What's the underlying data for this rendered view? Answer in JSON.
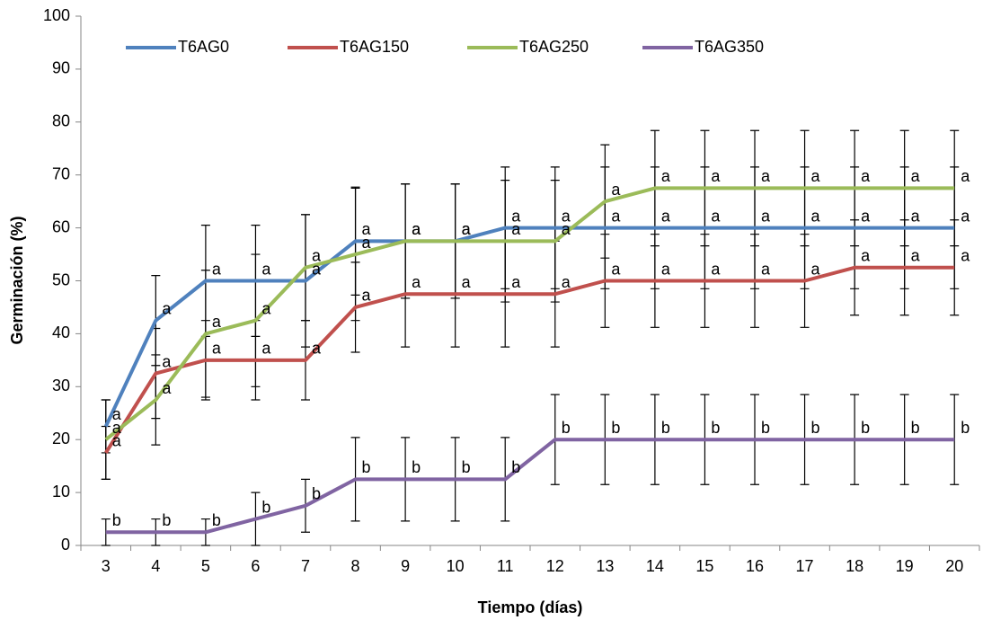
{
  "chart_data": {
    "type": "line",
    "xlabel": "Tiempo (días)",
    "ylabel": "Germinación (%)",
    "categories": [
      "3",
      "4",
      "5",
      "6",
      "7",
      "8",
      "9",
      "10",
      "11",
      "12",
      "13",
      "14",
      "15",
      "16",
      "17",
      "18",
      "19",
      "20"
    ],
    "ylim": [
      0,
      100
    ],
    "yticks": [
      0,
      10,
      20,
      30,
      40,
      50,
      60,
      70,
      80,
      90,
      100
    ],
    "legend": "top-left",
    "series": [
      {
        "name": "T6AG0",
        "color": "#4f81bd",
        "values": [
          22.5,
          42.5,
          50,
          50,
          50,
          57.5,
          57.5,
          57.5,
          60,
          60,
          60,
          60,
          60,
          60,
          60,
          60,
          60,
          60
        ],
        "errors": [
          5,
          8.5,
          10.5,
          10.5,
          12.5,
          10.2,
          10.8,
          10.8,
          11.5,
          11.5,
          11.5,
          11.5,
          11.5,
          11.5,
          11.5,
          11.5,
          11.5,
          11.5
        ],
        "letters": [
          "a",
          "a",
          "a",
          "a",
          "a",
          "a",
          "a",
          "a",
          "a",
          "a",
          "a",
          "a",
          "a",
          "a",
          "a",
          "a",
          "a",
          "a"
        ]
      },
      {
        "name": "T6AG150",
        "color": "#c0504d",
        "values": [
          17.5,
          32.5,
          35,
          35,
          35,
          45,
          47.5,
          47.5,
          47.5,
          47.5,
          50,
          50,
          50,
          50,
          50,
          52.5,
          52.5,
          52.5
        ],
        "errors": [
          5,
          8.5,
          7.5,
          7.5,
          7.5,
          8.5,
          10,
          10,
          10,
          10,
          8.8,
          8.8,
          8.8,
          8.8,
          8.8,
          9,
          9,
          9
        ],
        "letters": [
          "a",
          "a",
          "a",
          "a",
          "a",
          "a",
          "a",
          "a",
          "a",
          "a",
          "a",
          "a",
          "a",
          "a",
          "a",
          "a",
          "a",
          "a"
        ]
      },
      {
        "name": "T6AG250",
        "color": "#9bbb59",
        "values": [
          20,
          27.5,
          40,
          42.5,
          52.5,
          55,
          57.5,
          57.5,
          57.5,
          57.5,
          65,
          67.5,
          67.5,
          67.5,
          67.5,
          67.5,
          67.5,
          67.5
        ],
        "errors": [
          7.5,
          8.5,
          12,
          12.5,
          10,
          12.5,
          10.8,
          10.8,
          11.5,
          11.5,
          10.7,
          10.9,
          10.9,
          10.9,
          10.9,
          10.9,
          10.9,
          10.9
        ],
        "letters": [
          "a",
          "a",
          "a",
          "a",
          "a",
          "a",
          "a",
          "a",
          "a",
          "a",
          "a",
          "a",
          "a",
          "a",
          "a",
          "a",
          "a",
          "a"
        ]
      },
      {
        "name": "T6AG350",
        "color": "#8064a2",
        "values": [
          2.5,
          2.5,
          2.5,
          5,
          7.5,
          12.5,
          12.5,
          12.5,
          12.5,
          20,
          20,
          20,
          20,
          20,
          20,
          20,
          20,
          20
        ],
        "errors": [
          2.5,
          2.5,
          2.5,
          5,
          5,
          7.9,
          7.9,
          7.9,
          7.9,
          8.5,
          8.5,
          8.5,
          8.5,
          8.5,
          8.5,
          8.5,
          8.5,
          8.5
        ],
        "letters": [
          "b",
          "b",
          "b",
          "b",
          "b",
          "b",
          "b",
          "b",
          "b",
          "b",
          "b",
          "b",
          "b",
          "b",
          "b",
          "b",
          "b",
          "b"
        ]
      }
    ]
  }
}
